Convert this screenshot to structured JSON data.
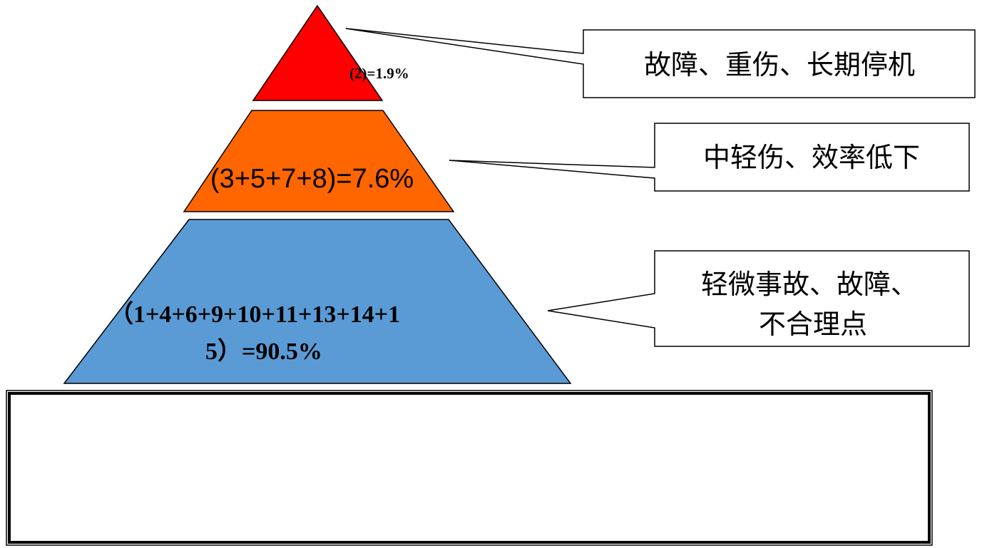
{
  "pyramid": {
    "levels": [
      {
        "id": "top",
        "label": "(2)=1.9%",
        "color": "#ff0000",
        "callout": [
          "故障、重伤、长期停机"
        ]
      },
      {
        "id": "middle",
        "label": "(3+5+7+8)=7.6%",
        "color": "#ff6600",
        "callout": [
          "中轻伤、效率低下"
        ]
      },
      {
        "id": "bottom",
        "label_lines": [
          "（1+4+6+9+10+11+13+14+1",
          "5）=90.5%"
        ],
        "color": "#5b9bd5",
        "callout": [
          "轻微事故、故障、",
          "不合理点"
        ]
      }
    ]
  },
  "bottom_box": {
    "text": ""
  }
}
